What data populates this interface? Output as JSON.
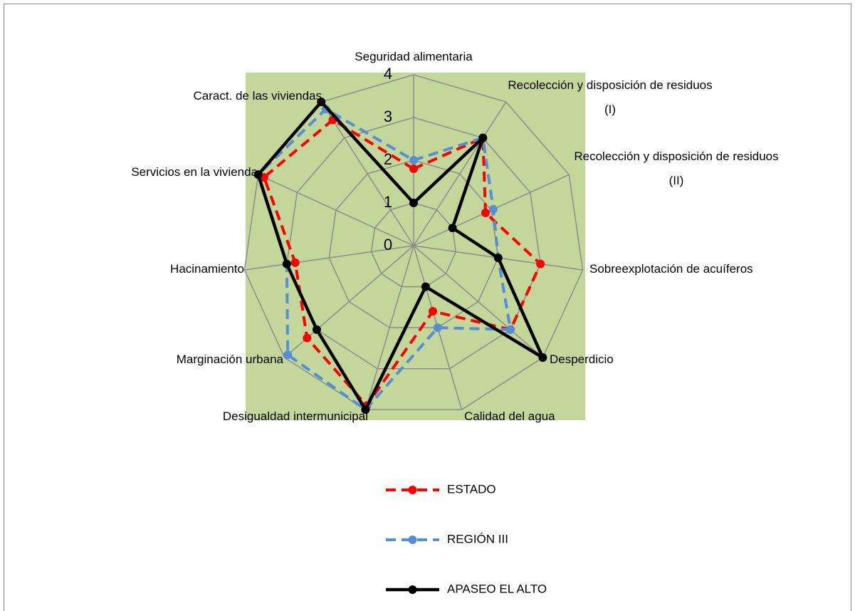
{
  "chart_data": {
    "type": "radar",
    "categories": [
      "Seguridad alimentaria",
      "Recolección y disposición de residuos (I)",
      "Recolección y disposición de residuos (II)",
      "Sobreexplotación de acuíferos",
      "Desperdicio",
      "Calidad del agua",
      "Desigualdad intermunicipal",
      "Marginación urbana",
      "Hacinamiento",
      "Servicios en la vivienda",
      "Caract. de las viviendas"
    ],
    "series": [
      {
        "name": "ESTADO",
        "color": "#ff0000",
        "dashed": true,
        "values": [
          1.8,
          3,
          1.85,
          3,
          3,
          1.6,
          3.9,
          3.3,
          2.8,
          3.85,
          3.5
        ]
      },
      {
        "name": "REGIÓN III",
        "color": "#558ed5",
        "dashed": true,
        "values": [
          2,
          3,
          2.05,
          2,
          3,
          2,
          4,
          3.9,
          3,
          4,
          3.8
        ]
      },
      {
        "name": "APASEO EL ALTO",
        "color": "#000000",
        "dashed": false,
        "values": [
          1,
          3,
          1,
          2,
          4,
          1,
          4,
          3,
          3,
          4,
          4
        ]
      }
    ],
    "rlim": [
      0,
      4
    ],
    "rticks": [
      0,
      1,
      2,
      3,
      4
    ],
    "grid": true,
    "plot_background": "#c4d79b",
    "legend": "bottom"
  }
}
